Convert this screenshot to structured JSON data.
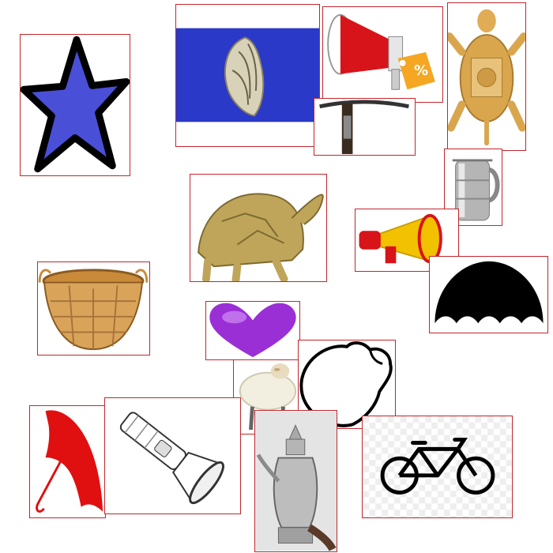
{
  "canvas": {
    "background": "#ffffff",
    "frame_color": "#c1272d"
  },
  "items": [
    {
      "id": "star",
      "name": "star-icon",
      "fill": "#4a4fd8",
      "outline": "#000000"
    },
    {
      "id": "conch-shell",
      "name": "conch-shell-image",
      "fill": "#2a39c8"
    },
    {
      "id": "megaphone-sale",
      "name": "megaphone-sale-icon",
      "fill": "#d7141a",
      "tag": "%",
      "tag_color": "#f5a623"
    },
    {
      "id": "turtle-yantra",
      "name": "brass-turtle-yantra-image",
      "fill": "#d9a64e"
    },
    {
      "id": "pickaxe",
      "name": "pickaxe-tool-image",
      "fill": "#222222"
    },
    {
      "id": "jug",
      "name": "steel-jug-image",
      "fill": "#b5b5b5"
    },
    {
      "id": "tortoise",
      "name": "tortoise-sculpture-image",
      "fill": "#bfa55a"
    },
    {
      "id": "megaphone",
      "name": "megaphone-icon",
      "fill": "#f2c200",
      "accent": "#d7141a"
    },
    {
      "id": "umbrella-black",
      "name": "open-umbrella-silhouette-icon",
      "fill": "#000000"
    },
    {
      "id": "basket",
      "name": "wicker-basket-image",
      "fill": "#d9a45a"
    },
    {
      "id": "heart",
      "name": "purple-heart-icon",
      "fill": "#9b2fd6"
    },
    {
      "id": "sheep",
      "name": "sheep-cartoon-image",
      "fill": "#f3efe0"
    },
    {
      "id": "conch-outline",
      "name": "conch-outline-icon",
      "fill": "#000000"
    },
    {
      "id": "umbrella-red",
      "name": "red-umbrella-icon",
      "fill": "#e01010"
    },
    {
      "id": "flashlight",
      "name": "flashlight-sketch-image",
      "fill": "#333333"
    },
    {
      "id": "kettle",
      "name": "silver-kettle-image",
      "fill": "#a9a9a9"
    },
    {
      "id": "bicycle",
      "name": "bicycle-icon",
      "fill": "#000000"
    }
  ]
}
